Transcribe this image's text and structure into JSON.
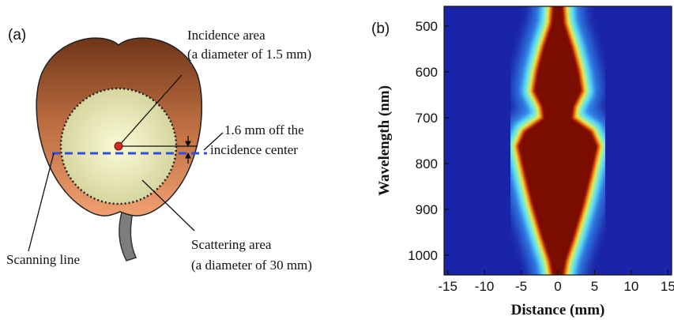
{
  "panel_a": {
    "label": "(a)",
    "incidence_area": [
      "Incidence area",
      "(a diameter of 1.5 mm)"
    ],
    "offset": [
      "1.6 mm off the",
      "incidence center"
    ],
    "scanning_line": "Scanning line",
    "scattering_area": [
      "Scattering area",
      "(a diameter of 30 mm)"
    ]
  },
  "panel_b": {
    "label": "(b)",
    "xlabel": "Distance (mm)",
    "ylabel": "Wavelength (nm)",
    "xlim": [
      -15.5,
      15.5
    ],
    "ylim": [
      1043,
      457
    ],
    "xticks": [
      -15,
      -10,
      -5,
      0,
      5,
      10,
      15
    ],
    "yticks": [
      500,
      600,
      700,
      800,
      900,
      1000
    ]
  }
}
